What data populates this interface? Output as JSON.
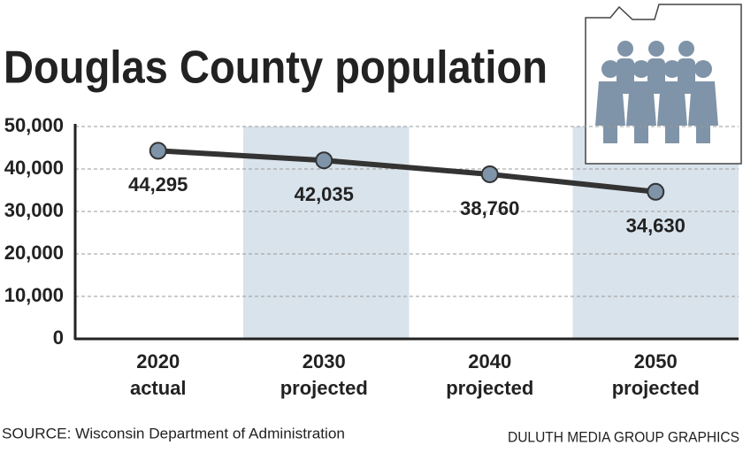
{
  "chart_data": {
    "type": "line",
    "title": "Douglas County population",
    "categories": [
      "2020",
      "2030",
      "2040",
      "2050"
    ],
    "category_notes": [
      "actual",
      "projected",
      "projected",
      "projected"
    ],
    "series": [
      {
        "name": "Population",
        "color": "#333333",
        "marker_color": "#7f94a8",
        "values": [
          44295,
          42035,
          38760,
          34630
        ],
        "value_labels": [
          "44,295",
          "42,035",
          "38,760",
          "34,630"
        ]
      }
    ],
    "ylim": [
      0,
      50000
    ],
    "yticks": [
      0,
      {
        "value": 10000,
        "label": "10,000"
      },
      {
        "value": 20000,
        "label": "20,000"
      },
      {
        "value": 30000,
        "label": "30,000"
      },
      {
        "value": 40000,
        "label": "40,000"
      },
      {
        "value": 50000,
        "label": "50,000"
      }
    ],
    "grid": true,
    "source": "SOURCE: Wisconsin Department of Administration",
    "credit": "DULUTH MEDIA GROUP GRAPHICS"
  }
}
